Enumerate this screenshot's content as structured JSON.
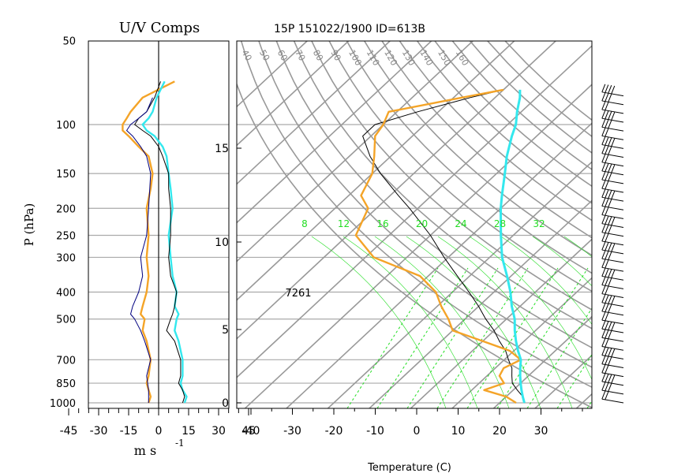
{
  "header": {
    "uv_title": "U/V Comps",
    "skewt_title": "15P 151022/1900 ID=613B",
    "p_axis_label": "P (hPa)",
    "uv_xlabel": "m s",
    "uv_xlabel_exp": "-1",
    "temp_xlabel": "Temperature (C)",
    "annotation": "7261"
  },
  "colors": {
    "u_wind": "#f4a428",
    "v_wind": "#33e8ee",
    "dewpoint": "#f4a428",
    "parcel": "#33e8ee",
    "grid": "#999999",
    "mixing_ratio": "#22dd22"
  },
  "chart_data": [
    {
      "type": "line",
      "title": "U/V Comps",
      "xlabel": "m s -1",
      "ylabel": "P (hPa)",
      "x_ticks": [
        "-45",
        "-30",
        "-15",
        "0",
        "15",
        "30",
        "45"
      ],
      "y_ticks": [
        "50",
        "100",
        "150",
        "200",
        "250",
        "300",
        "400",
        "500",
        "700",
        "850",
        "1000"
      ],
      "xlim": [
        -50,
        50
      ],
      "ylim": [
        1000,
        50
      ],
      "y_scale": "log",
      "series": [
        {
          "name": "",
          "color": "u_wind",
          "p": [
            1000,
            950,
            900,
            850,
            800,
            700,
            600,
            550,
            500,
            480,
            450,
            400,
            350,
            300,
            250,
            200,
            170,
            150,
            130,
            120,
            110,
            105,
            100,
            95,
            90,
            80,
            70
          ],
          "values": [
            -5,
            -4,
            -5,
            -6,
            -5,
            -4,
            -6,
            -8,
            -7,
            -9,
            -8,
            -6,
            -5,
            -6,
            -5,
            -6,
            -4,
            -3,
            -5,
            -10,
            -15,
            -18,
            -18,
            -16,
            -14,
            -8,
            8
          ]
        },
        {
          "name": "",
          "color": "v_wind",
          "p": [
            1000,
            950,
            900,
            850,
            800,
            700,
            600,
            550,
            500,
            480,
            450,
            400,
            350,
            300,
            250,
            200,
            170,
            150,
            130,
            120,
            110,
            105,
            100,
            95,
            90,
            80,
            70
          ],
          "values": [
            13,
            14,
            12,
            11,
            12,
            12,
            10,
            8,
            9,
            10,
            8,
            9,
            7,
            6,
            5,
            7,
            6,
            5,
            4,
            2,
            -2,
            -6,
            -8,
            -5,
            -3,
            -1,
            3
          ]
        },
        {
          "name": "",
          "color": "black",
          "p": [
            1000,
            950,
            900,
            850,
            800,
            700,
            600,
            550,
            500,
            480,
            450,
            400,
            350,
            300,
            250,
            200,
            170,
            150,
            130,
            120,
            110,
            105,
            100,
            95,
            90,
            80,
            70
          ],
          "values": [
            12,
            13,
            12,
            10,
            11,
            11,
            8,
            4,
            6,
            7,
            8,
            9,
            6,
            5,
            6,
            6,
            5,
            5,
            2,
            0,
            -4,
            -8,
            -12,
            -10,
            -6,
            -2,
            1
          ]
        },
        {
          "name": "",
          "color": "navy",
          "p": [
            1000,
            900,
            800,
            700,
            600,
            550,
            500,
            480,
            450,
            400,
            350,
            300,
            250,
            200,
            150,
            130,
            120,
            110,
            105,
            100,
            95,
            90,
            80
          ],
          "values": [
            -5,
            -5,
            -6,
            -4,
            -7,
            -9,
            -12,
            -14,
            -13,
            -10,
            -8,
            -9,
            -6,
            -5,
            -4,
            -6,
            -9,
            -13,
            -16,
            -14,
            -10,
            -6,
            -3
          ]
        }
      ]
    },
    {
      "type": "line",
      "title": "15P 151022/1900 ID=613B",
      "xlabel": "Temperature (C)",
      "x_ticks": [
        "-40",
        "-30",
        "-20",
        "-10",
        "0",
        "10",
        "20",
        "30"
      ],
      "height_ticks_km": [
        "0",
        "5",
        "10",
        "15"
      ],
      "mixing_ratio_labels": [
        "8",
        "12",
        "16",
        "20",
        "24",
        "28",
        "32"
      ],
      "theta_labels": [
        "40",
        "50",
        "60",
        "70",
        "80",
        "90",
        "100",
        "110",
        "120",
        "130",
        "140",
        "150",
        "160"
      ],
      "xlim": [
        -43,
        42
      ],
      "ylim": [
        1000,
        50
      ],
      "series": [
        {
          "name": "",
          "color": "black",
          "p": [
            1000,
            950,
            900,
            850,
            800,
            750,
            700,
            650,
            600,
            550,
            500,
            450,
            400,
            350,
            300,
            250,
            200,
            180,
            150,
            130,
            110,
            100,
            90,
            80,
            75
          ],
          "values": [
            26,
            24,
            21,
            18,
            16,
            14,
            11,
            8,
            4,
            0,
            -5,
            -10,
            -16,
            -23,
            -31,
            -40,
            -52,
            -58,
            -68,
            -75,
            -82,
            -82,
            -75,
            -66,
            -60
          ]
        },
        {
          "name": "",
          "color": "dewpoint",
          "p": [
            1000,
            950,
            900,
            850,
            800,
            750,
            700,
            650,
            600,
            550,
            500,
            450,
            400,
            350,
            300,
            250,
            200,
            180,
            150,
            130,
            110,
            100,
            90,
            80,
            75
          ],
          "values": [
            24,
            20,
            13,
            16,
            13,
            12,
            14,
            9,
            0,
            -10,
            -14,
            -19,
            -24,
            -32,
            -48,
            -58,
            -62,
            -67,
            -70,
            -74,
            -79,
            -80,
            -82,
            -68,
            -60
          ]
        },
        {
          "name": "",
          "color": "parcel",
          "p": [
            1000,
            950,
            900,
            850,
            800,
            750,
            700,
            650,
            600,
            550,
            500,
            450,
            400,
            350,
            300,
            250,
            200,
            180,
            150,
            130,
            110,
            100,
            90,
            80,
            75
          ],
          "values": [
            26,
            24,
            22,
            20,
            18,
            16,
            14,
            11,
            8,
            5,
            2,
            -2,
            -6,
            -11,
            -17,
            -23,
            -30,
            -33,
            -38,
            -42,
            -46,
            -48,
            -51,
            -54,
            -56
          ]
        }
      ]
    }
  ]
}
